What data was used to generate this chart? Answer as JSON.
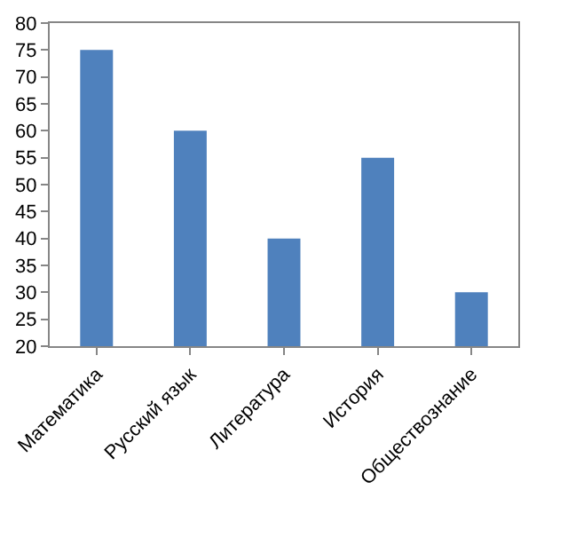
{
  "chart_data": {
    "type": "bar",
    "categories": [
      "Математика",
      "Русский язык",
      "Литература",
      "История",
      "Обществознание"
    ],
    "values": [
      75,
      60,
      40,
      55,
      30
    ],
    "color": "#4f81bd",
    "ylim": [
      20,
      80
    ],
    "yticks": [
      20,
      25,
      30,
      35,
      40,
      45,
      50,
      55,
      60,
      65,
      70,
      75,
      80
    ],
    "grid": false
  }
}
